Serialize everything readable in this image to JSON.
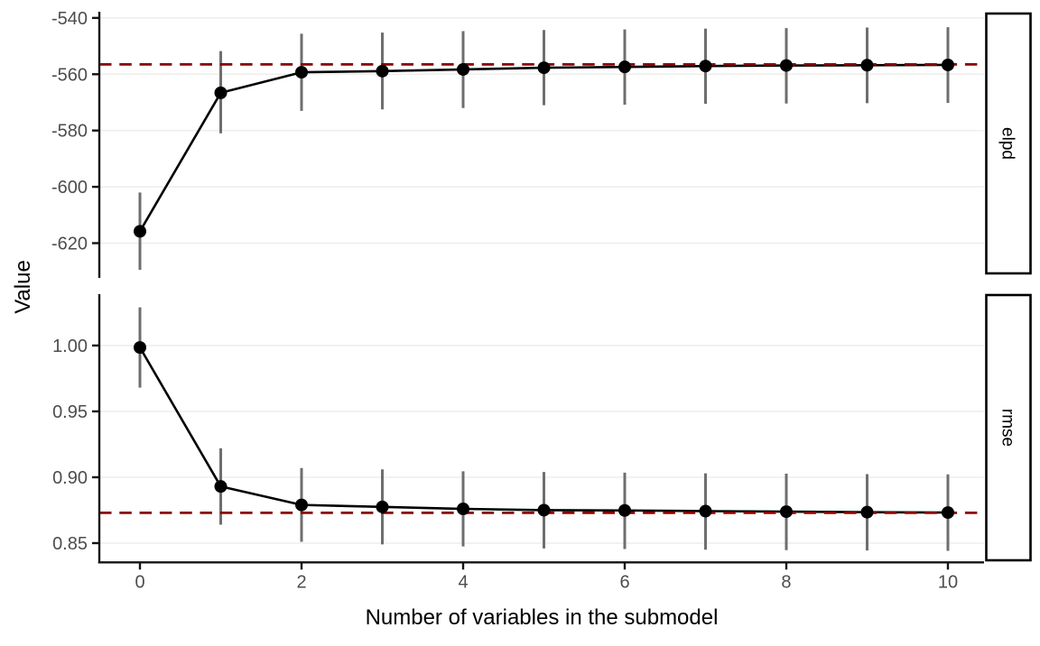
{
  "chart_data": {
    "type": "line",
    "title": "",
    "xlabel": "Number of variables in the submodel",
    "ylabel": "Value",
    "legend": "none",
    "grid": "major-horizontal",
    "x": [
      0,
      1,
      2,
      3,
      4,
      5,
      6,
      7,
      8,
      9,
      10
    ],
    "x_tick_values": [
      0,
      2,
      4,
      6,
      8,
      10
    ],
    "x_tick_labels": [
      "0",
      "2",
      "4",
      "6",
      "8",
      "10"
    ],
    "xlim": [
      -0.503,
      10.447
    ],
    "facets": [
      {
        "label": "elpd",
        "ylim": [
          -631.7,
          -537.8
        ],
        "y_tick_values": [
          -540,
          -560,
          -580,
          -600,
          -620
        ],
        "y_tick_labels": [
          "-540",
          "-560",
          "-580",
          "-600",
          "-620"
        ],
        "ref_line": -556.5,
        "estimates": [
          -615.8,
          -566.6,
          -559.3,
          -558.9,
          -558.3,
          -557.7,
          -557.4,
          -557.1,
          -556.9,
          -556.8,
          -556.7
        ],
        "lower": [
          -629.5,
          -581.0,
          -573.0,
          -572.5,
          -572.0,
          -571.0,
          -570.8,
          -570.5,
          -570.4,
          -570.3,
          -570.2
        ],
        "upper": [
          -602.0,
          -551.8,
          -545.6,
          -545.2,
          -544.7,
          -544.3,
          -544.1,
          -543.8,
          -543.6,
          -543.4,
          -543.3
        ]
      },
      {
        "label": "rmse",
        "ylim": [
          0.8356,
          1.039
        ],
        "y_tick_values": [
          1.0,
          0.95,
          0.9,
          0.85
        ],
        "y_tick_labels": [
          "1.00",
          "0.95",
          "0.90",
          "0.85"
        ],
        "ref_line": 0.873,
        "estimates": [
          0.9985,
          0.893,
          0.879,
          0.8775,
          0.876,
          0.875,
          0.8748,
          0.8743,
          0.8739,
          0.8735,
          0.8732
        ],
        "lower": [
          0.968,
          0.864,
          0.851,
          0.849,
          0.8475,
          0.846,
          0.8455,
          0.845,
          0.8447,
          0.8444,
          0.8442
        ],
        "upper": [
          1.029,
          0.922,
          0.907,
          0.906,
          0.9045,
          0.904,
          0.9035,
          0.903,
          0.9027,
          0.9024,
          0.9022
        ]
      }
    ],
    "colors": {
      "point": "#000000",
      "line": "#000000",
      "interval": "#6E6E6E",
      "ref_line": "#8B0000",
      "grid": "#EDEDED",
      "axis": "#141414",
      "tick_text": "#4D4D4D",
      "strip_border": "#000000",
      "strip_bg": "#FFFFFF",
      "background": "#FFFFFF"
    }
  }
}
